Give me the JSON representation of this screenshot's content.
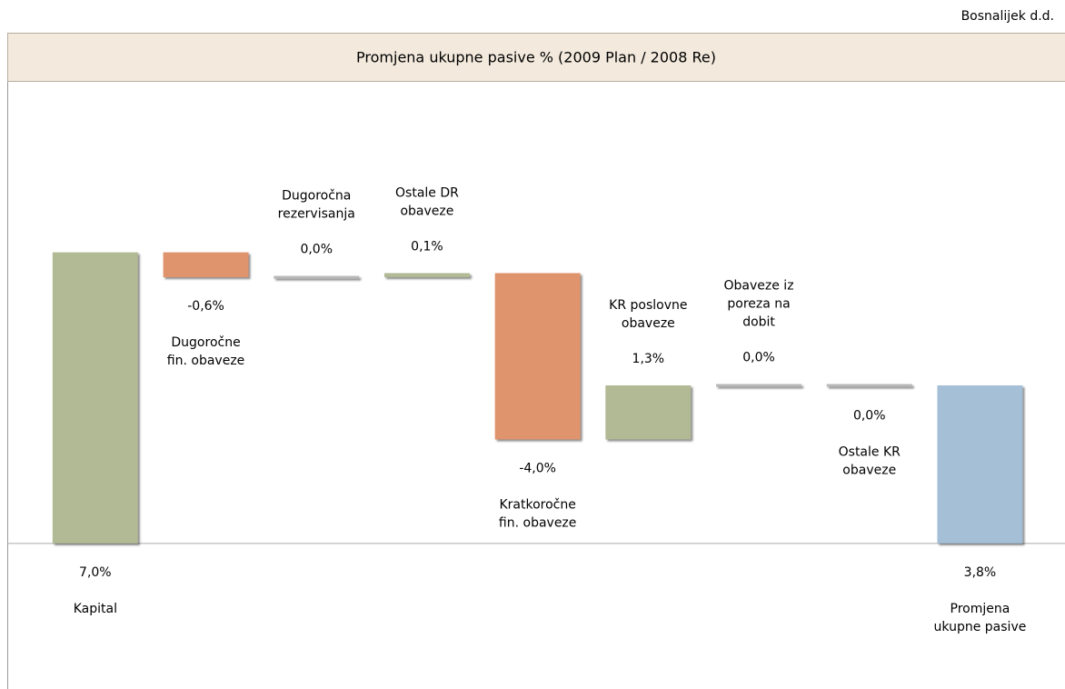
{
  "company": "Bosnalijek d.d.",
  "chart_data": {
    "type": "waterfall",
    "title": "Promjena ukupne pasive % (2009 Plan / 2008 Re)",
    "categories": [
      [
        "Kapital"
      ],
      [
        "Dugoročne",
        "fin. obaveze"
      ],
      [
        "Dugoročna",
        "rezervisanja"
      ],
      [
        "Ostale DR",
        "obaveze"
      ],
      [
        "Kratkoročne",
        "fin. obaveze"
      ],
      [
        "KR poslovne",
        "obaveze"
      ],
      [
        "Obaveze iz",
        "poreza na",
        "dobit"
      ],
      [
        "Ostale KR",
        "obaveze"
      ],
      [
        "Promjena",
        "ukupne pasive"
      ]
    ],
    "values": [
      7.0,
      -0.6,
      0.0,
      0.1,
      -4.0,
      1.3,
      0.0,
      0.0,
      3.8
    ],
    "value_labels": [
      "7,0%",
      "-0,6%",
      "0,0%",
      "0,1%",
      "-4,0%",
      "1,3%",
      "0,0%",
      "0,0%",
      "3,8%"
    ],
    "label_side": [
      "below",
      "below",
      "above",
      "above",
      "below",
      "above",
      "above",
      "below",
      "below"
    ],
    "colors": {
      "increase": "#b1b995",
      "decrease": "#e0946e",
      "total": "#a4bfd6",
      "zero": "#b8b8b8"
    },
    "ylim": [
      -3.5,
      11.1
    ]
  }
}
